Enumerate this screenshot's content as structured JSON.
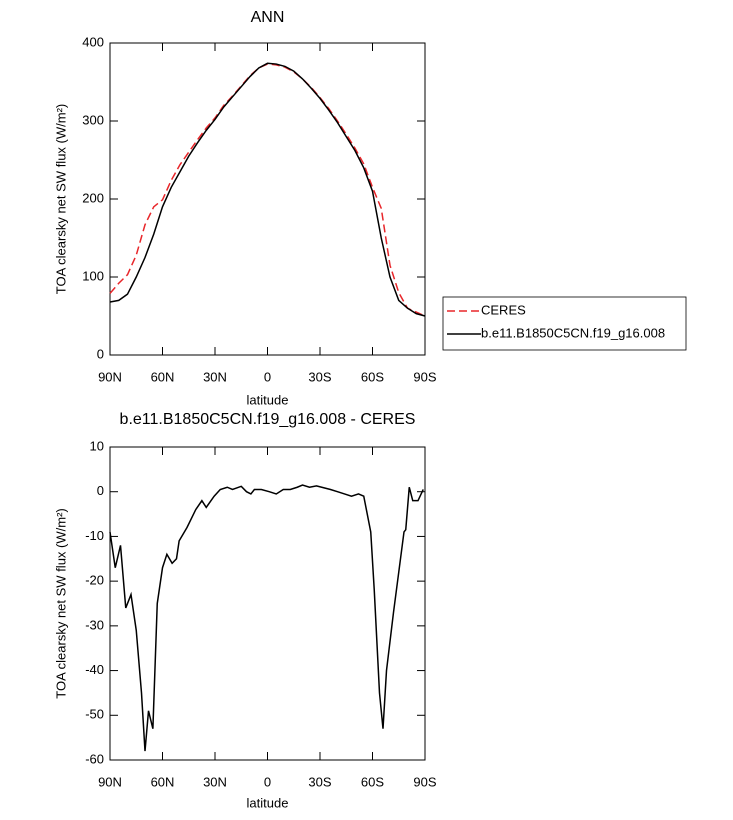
{
  "chart_data": [
    {
      "type": "line",
      "title": "ANN",
      "x_label": "latitude",
      "y_label": "TOA clearsky net SW flux (W/m²)",
      "x": [
        90,
        85,
        80,
        75,
        70,
        65,
        60,
        55,
        50,
        45,
        40,
        35,
        30,
        25,
        20,
        15,
        10,
        5,
        0,
        -5,
        -10,
        -15,
        -20,
        -25,
        -30,
        -35,
        -40,
        -45,
        -50,
        -55,
        -60,
        -65,
        -70,
        -75,
        -80,
        -85,
        -90
      ],
      "series": [
        {
          "name": "CERES",
          "color": "#e8262a",
          "linestyle": "dashed",
          "values": [
            79,
            92,
            103,
            128,
            167,
            190,
            199,
            224,
            244,
            260,
            276,
            291,
            304,
            320,
            332,
            345,
            358,
            368,
            373,
            372,
            369,
            363,
            354,
            343,
            330,
            316,
            300,
            283,
            265,
            245,
            215,
            188,
            115,
            80,
            60,
            55,
            50
          ]
        },
        {
          "name": "b.e11.B1850C5CN.f19_g16.008",
          "color": "#000000",
          "linestyle": "solid",
          "values": [
            68,
            70,
            78,
            100,
            125,
            155,
            190,
            215,
            235,
            255,
            272,
            288,
            302,
            318,
            331,
            344,
            357,
            368,
            374,
            373,
            370,
            364,
            354,
            342,
            329,
            314,
            298,
            280,
            262,
            240,
            210,
            150,
            100,
            70,
            60,
            53,
            50
          ]
        }
      ],
      "xlim": [
        90,
        -90
      ],
      "xticks": [
        {
          "value": 90,
          "label": "90N"
        },
        {
          "value": 60,
          "label": "60N"
        },
        {
          "value": 30,
          "label": "30N"
        },
        0,
        {
          "value": -30,
          "label": "30S"
        },
        {
          "value": -60,
          "label": "60S"
        },
        {
          "value": -90,
          "label": "90S"
        }
      ],
      "ylim": [
        0,
        400
      ],
      "yticks": [
        0,
        100,
        200,
        300,
        400
      ],
      "legend": "right"
    },
    {
      "type": "line",
      "title": "b.e11.B1850C5CN.f19_g16.008 - CERES",
      "x_label": "latitude",
      "y_label": "TOA clearsky net SW flux (W/m²)",
      "x": [
        90,
        87,
        84,
        81,
        78,
        75,
        72,
        70,
        68,
        65.5,
        63,
        60,
        57.5,
        54.5,
        52,
        50.5,
        46,
        41,
        37.5,
        35,
        30.5,
        27,
        23,
        20,
        15,
        12,
        9.5,
        7.5,
        3.5,
        -1,
        -5,
        -9,
        -13,
        -17,
        -20,
        -24,
        -28,
        -31,
        -36,
        -40,
        -44,
        -48,
        -52,
        -55,
        -59,
        -61,
        -64,
        -66,
        -68,
        -72,
        -75,
        -78,
        -79,
        -81,
        -83,
        -86,
        -89
      ],
      "series": [
        {
          "name": "b.e11.B1850C5CN.f19_g16.008 - CERES",
          "color": "#000000",
          "linestyle": "solid",
          "values": [
            -9,
            -17,
            -12,
            -26,
            -23,
            -31,
            -45,
            -58,
            -49,
            -53,
            -25,
            -17,
            -14,
            -16,
            -15,
            -11,
            -8,
            -4,
            -2,
            -3.5,
            -1,
            0.5,
            1,
            0.5,
            1.2,
            0,
            -0.5,
            0.5,
            0.5,
            0,
            -0.5,
            0.5,
            0.5,
            1,
            1.5,
            1,
            1.3,
            1,
            0.5,
            0,
            -0.5,
            -1,
            -0.5,
            -1,
            -9,
            -22,
            -45,
            -53,
            -40,
            -27,
            -18,
            -9,
            -8.5,
            1,
            -2,
            -2,
            0.5
          ]
        }
      ],
      "xlim": [
        90,
        -90
      ],
      "xticks": [
        {
          "value": 90,
          "label": "90N"
        },
        {
          "value": 60,
          "label": "60N"
        },
        {
          "value": 30,
          "label": "30N"
        },
        0,
        {
          "value": -30,
          "label": "30S"
        },
        {
          "value": -60,
          "label": "60S"
        },
        {
          "value": -90,
          "label": "90S"
        }
      ],
      "ylim": [
        -60,
        10
      ],
      "yticks": [
        -60,
        -50,
        -40,
        -30,
        -20,
        -10,
        0,
        10
      ]
    }
  ]
}
